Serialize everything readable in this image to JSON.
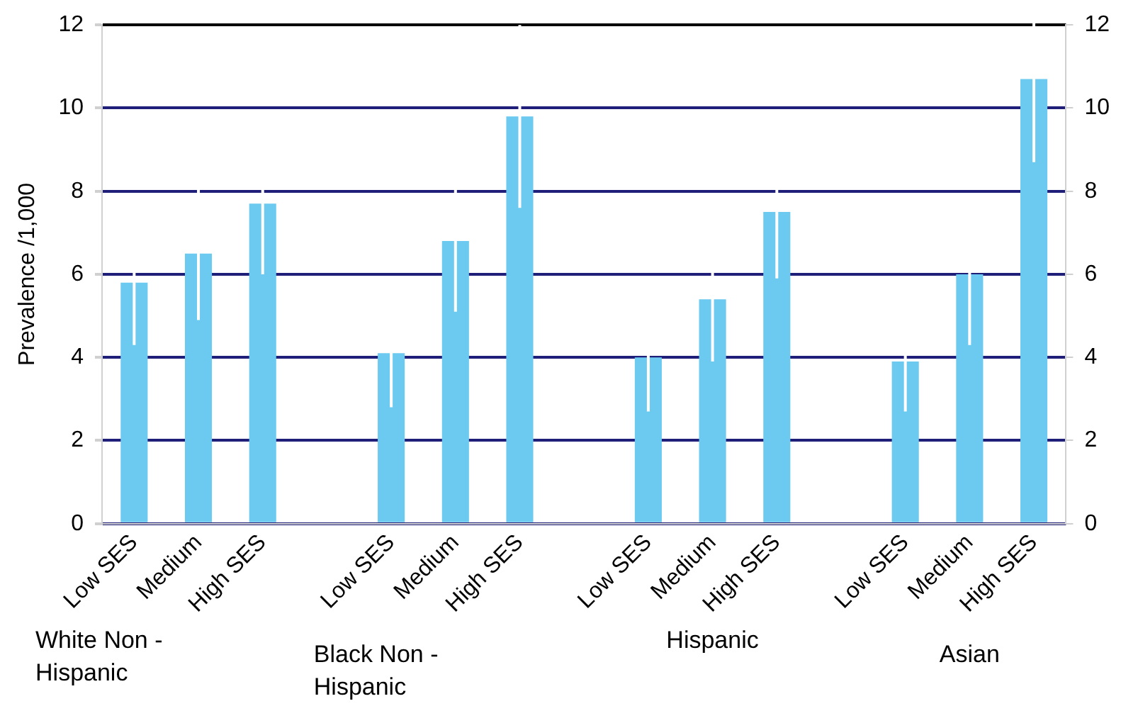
{
  "chart_data": {
    "type": "bar",
    "ylabel": "Prevalence /1,000",
    "categories": [
      "Low SES",
      "Medium",
      "High SES",
      null,
      "Low SES",
      "Medium",
      "High SES",
      null,
      "Low SES",
      "Medium",
      "High SES",
      null,
      "Low SES",
      "Medium",
      "High SES"
    ],
    "series": [
      {
        "color": "#6ccaf0",
        "values": [
          5.8,
          6.5,
          7.7,
          null,
          4.1,
          6.8,
          9.8,
          null,
          4.0,
          5.4,
          7.5,
          null,
          3.9,
          6.0,
          10.7
        ],
        "errors": [
          1.5,
          1.6,
          1.7,
          null,
          1.3,
          1.7,
          2.2,
          null,
          1.3,
          1.5,
          1.6,
          null,
          1.2,
          1.7,
          2.0
        ]
      }
    ],
    "ylim": [
      0,
      12
    ],
    "yticks": [
      0,
      2,
      4,
      6,
      8,
      10,
      12
    ],
    "y2lim": [
      0,
      12
    ],
    "y2ticks": [
      0,
      2,
      4,
      6,
      8,
      10,
      12
    ],
    "grid": "y",
    "legend": false,
    "annotations": [
      "White Non - Hispanic",
      "Black Non - Hispanic",
      "Hispanic",
      "Asian"
    ]
  }
}
